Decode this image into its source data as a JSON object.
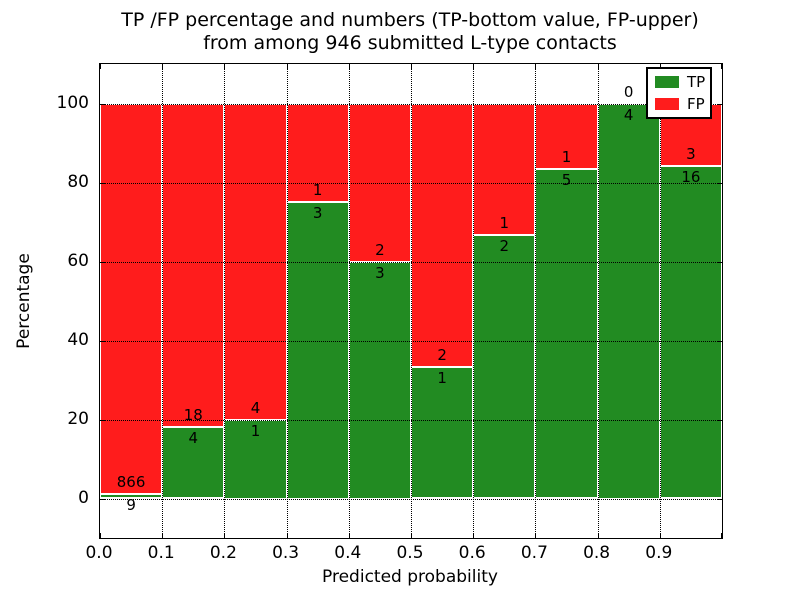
{
  "title": {
    "line1": "TP /FP percentage and numbers (TP-bottom value, FP-upper)",
    "line2": "from among 946 submitted L-type contacts"
  },
  "chart_data": {
    "type": "bar",
    "stacked": true,
    "normalized_to_percent": true,
    "title": "TP /FP percentage and numbers (TP-bottom value, FP-upper) from among 946 submitted L-type contacts",
    "xlabel": "Predicted probability",
    "ylabel": "Percentage",
    "xlim": [
      0.0,
      1.0
    ],
    "ylim": [
      -10,
      110
    ],
    "grid": true,
    "bin_width": 0.1,
    "bin_starts": [
      0.0,
      0.1,
      0.2,
      0.3,
      0.4,
      0.5,
      0.6,
      0.7,
      0.8,
      0.9
    ],
    "x_tick_labels": [
      "0.0",
      "0.1",
      "0.2",
      "0.3",
      "0.4",
      "0.5",
      "0.6",
      "0.7",
      "0.8",
      "0.9"
    ],
    "y_ticks": [
      0,
      20,
      40,
      60,
      80,
      100
    ],
    "series": [
      {
        "name": "TP",
        "color": "#228b22",
        "counts": [
          9,
          4,
          1,
          3,
          3,
          1,
          2,
          5,
          4,
          16
        ]
      },
      {
        "name": "FP",
        "color": "#ff1c1c",
        "counts": [
          866,
          18,
          4,
          1,
          2,
          2,
          1,
          1,
          0,
          3
        ]
      }
    ],
    "tp_percent": [
      1.03,
      18.18,
      20.0,
      75.0,
      60.0,
      33.33,
      66.67,
      83.33,
      100.0,
      84.21
    ],
    "legend": {
      "position": "upper right",
      "entries": [
        "TP",
        "FP"
      ]
    }
  },
  "colors": {
    "tp_green": "#228b22",
    "fp_red": "#ff1c1c",
    "bar_edge": "#ffffff",
    "grid": "#000000",
    "text": "#000000",
    "background": "#ffffff"
  }
}
